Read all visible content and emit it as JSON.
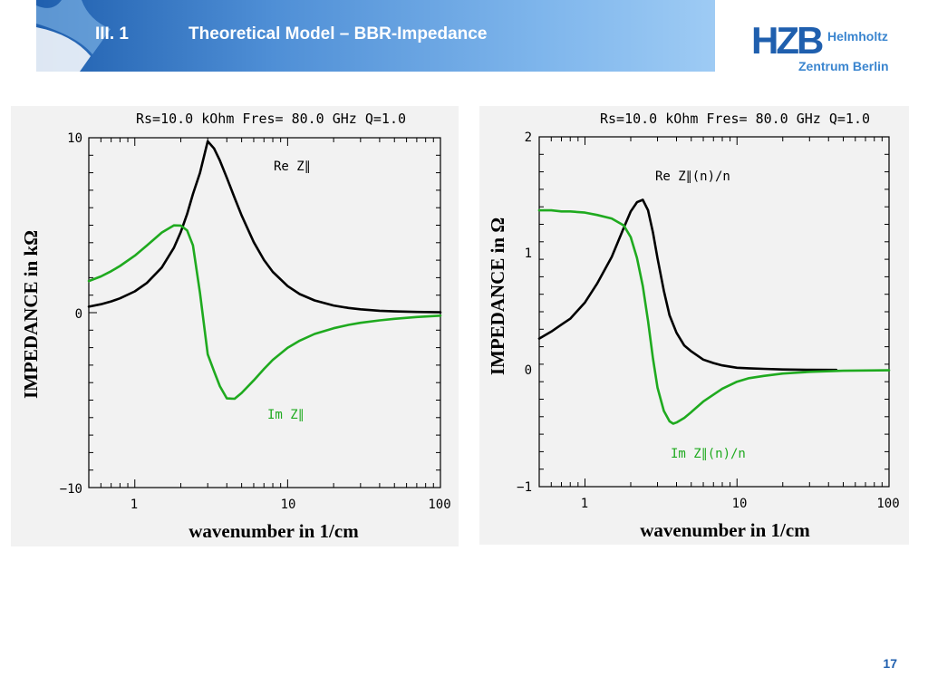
{
  "slide": {
    "section_number": "III.  1",
    "title": "Theoretical Model – BBR-Impedance",
    "page_number": "17",
    "colors": {
      "header_start": "#1f5fae",
      "header_end": "#9ecbf4",
      "logo": "#1f5fae",
      "logo_text": "#3a85cf"
    }
  },
  "logo": {
    "mark": "HZB",
    "line1": "Helmholtz",
    "line2": "Zentrum Berlin"
  },
  "chart_data": [
    {
      "type": "line",
      "title": "Rs=10.0 kOhm  Fres= 80.0 GHz  Q=1.0",
      "xlabel": "wavenumber in 1/cm",
      "ylabel": "IMPEDANCE in kΩ",
      "x_scale": "log",
      "xlim": [
        0.5,
        100
      ],
      "ylim": [
        -10,
        10
      ],
      "x_ticks": [
        1,
        10,
        100
      ],
      "y_ticks": [
        -10,
        0,
        10
      ],
      "x_tick_labels": [
        "1",
        "10",
        "100"
      ],
      "y_tick_labels": [
        "−10",
        "0",
        "10"
      ],
      "grid": false,
      "resonance_x": 2.67,
      "series": [
        {
          "name": "Re Z∥",
          "color": "#000000",
          "x": [
            0.5,
            0.6,
            0.7,
            0.8,
            1.0,
            1.2,
            1.5,
            1.8,
            2.0,
            2.2,
            2.4,
            2.67,
            3.0,
            3.3,
            3.6,
            4.0,
            4.5,
            5.0,
            6.0,
            7.0,
            8.0,
            10,
            12,
            15,
            20,
            25,
            30,
            40,
            50,
            70,
            100
          ],
          "y": [
            0.34,
            0.48,
            0.64,
            0.82,
            1.22,
            1.7,
            2.58,
            3.7,
            4.61,
            5.64,
            6.78,
            8.0,
            9.8,
            9.39,
            8.7,
            7.71,
            6.56,
            5.56,
            4.03,
            3.01,
            2.33,
            1.52,
            1.06,
            0.7,
            0.41,
            0.27,
            0.19,
            0.11,
            0.07,
            0.04,
            0.02
          ]
        },
        {
          "name": "Im Z∥",
          "color": "#1faa1f",
          "x": [
            0.5,
            0.6,
            0.7,
            0.8,
            1.0,
            1.2,
            1.5,
            1.8,
            2.0,
            2.2,
            2.4,
            2.67,
            3.0,
            3.3,
            3.6,
            4.0,
            4.5,
            5.0,
            6.0,
            7.0,
            8.0,
            10,
            12,
            15,
            20,
            25,
            30,
            40,
            50,
            70,
            100
          ],
          "y": [
            1.81,
            2.07,
            2.37,
            2.67,
            3.26,
            3.84,
            4.58,
            4.99,
            4.98,
            4.7,
            3.85,
            1.12,
            -2.38,
            -3.35,
            -4.2,
            -4.9,
            -4.92,
            -4.59,
            -3.87,
            -3.22,
            -2.7,
            -2.01,
            -1.6,
            -1.22,
            -0.89,
            -0.7,
            -0.58,
            -0.44,
            -0.35,
            -0.25,
            -0.17
          ]
        }
      ]
    },
    {
      "type": "line",
      "title": "Rs=10.0 kOhm  Fres= 80.0 GHz  Q=1.0",
      "xlabel": "wavenumber in 1/cm",
      "ylabel": "IMPEDANCE in Ω",
      "x_scale": "log",
      "xlim": [
        0.5,
        100
      ],
      "ylim": [
        -1,
        2
      ],
      "x_ticks": [
        1,
        10,
        100
      ],
      "y_ticks": [
        -1,
        0,
        1,
        2
      ],
      "x_tick_labels": [
        "1",
        "10",
        "100"
      ],
      "y_tick_labels": [
        "−1",
        "0",
        "1",
        "2"
      ],
      "grid": false,
      "series": [
        {
          "name": "Re Z∥(n)/n",
          "color": "#000000",
          "x": [
            0.5,
            0.6,
            0.7,
            0.8,
            1.0,
            1.2,
            1.5,
            1.8,
            2.0,
            2.2,
            2.4,
            2.6,
            2.8,
            3.0,
            3.3,
            3.6,
            4.0,
            4.5,
            5.0,
            6.0,
            7.0,
            8.0,
            10,
            12,
            15,
            20,
            30,
            45
          ],
          "y": [
            0.27,
            0.33,
            0.39,
            0.44,
            0.58,
            0.74,
            0.97,
            1.22,
            1.36,
            1.44,
            1.46,
            1.37,
            1.18,
            0.96,
            0.68,
            0.47,
            0.32,
            0.21,
            0.16,
            0.09,
            0.06,
            0.04,
            0.02,
            0.015,
            0.01,
            0.005,
            0.002,
            0.001
          ]
        },
        {
          "name": "Im Z∥(n)/n",
          "color": "#1faa1f",
          "x": [
            0.5,
            0.6,
            0.7,
            0.8,
            1.0,
            1.2,
            1.5,
            1.8,
            2.0,
            2.2,
            2.4,
            2.6,
            2.8,
            3.0,
            3.3,
            3.6,
            3.8,
            4.0,
            4.5,
            5.0,
            6.0,
            7.0,
            8.0,
            10,
            12,
            15,
            20,
            30,
            50,
            100
          ],
          "y": [
            1.37,
            1.37,
            1.36,
            1.36,
            1.35,
            1.33,
            1.3,
            1.24,
            1.14,
            0.96,
            0.72,
            0.42,
            0.1,
            -0.15,
            -0.35,
            -0.44,
            -0.46,
            -0.45,
            -0.41,
            -0.36,
            -0.27,
            -0.21,
            -0.16,
            -0.1,
            -0.07,
            -0.05,
            -0.03,
            -0.015,
            -0.006,
            -0.002
          ]
        }
      ]
    }
  ]
}
